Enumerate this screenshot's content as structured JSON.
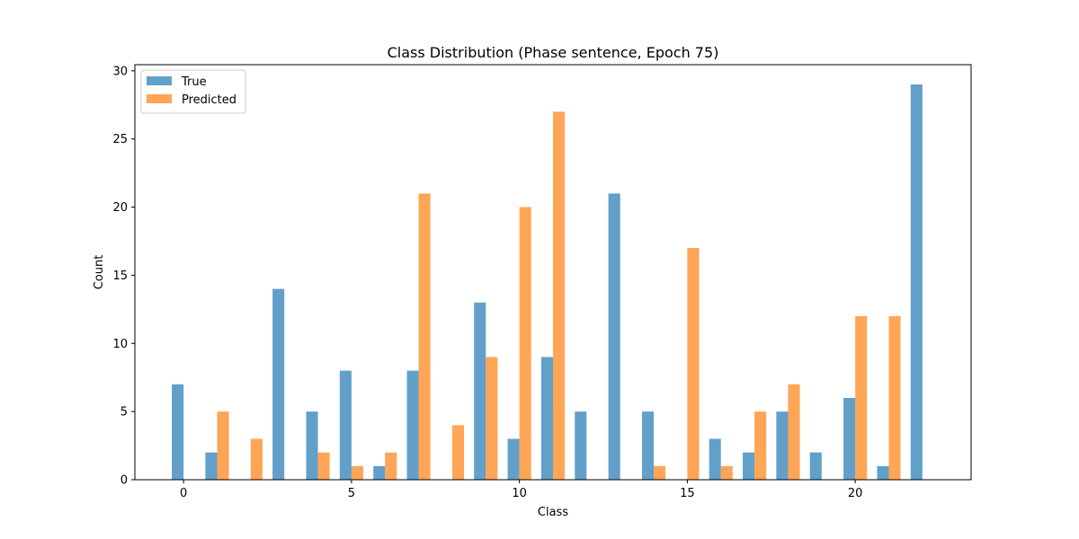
{
  "chart_data": {
    "type": "bar",
    "title": "Class Distribution (Phase sentence, Epoch 75)",
    "xlabel": "Class",
    "ylabel": "Count",
    "categories": [
      0,
      1,
      2,
      3,
      4,
      5,
      6,
      7,
      8,
      9,
      10,
      11,
      12,
      13,
      14,
      15,
      16,
      17,
      18,
      19,
      20,
      21,
      22
    ],
    "series": [
      {
        "name": "True",
        "color": "#1f77b4",
        "values": [
          7,
          2,
          0,
          14,
          5,
          8,
          1,
          8,
          0,
          13,
          3,
          9,
          5,
          21,
          5,
          0,
          3,
          2,
          5,
          2,
          6,
          1,
          29
        ]
      },
      {
        "name": "Predicted",
        "color": "#ff7f0e",
        "values": [
          0,
          5,
          3,
          0,
          2,
          1,
          2,
          21,
          4,
          9,
          20,
          27,
          0,
          0,
          1,
          17,
          1,
          5,
          7,
          0,
          12,
          12,
          0
        ]
      }
    ],
    "xlim": [
      -1.45,
      23.45
    ],
    "ylim": [
      0,
      30.45
    ],
    "xticks": [
      0,
      5,
      10,
      15,
      20
    ],
    "yticks": [
      0,
      5,
      10,
      15,
      20,
      25,
      30
    ],
    "legend_position": "top-left",
    "grid": false
  }
}
